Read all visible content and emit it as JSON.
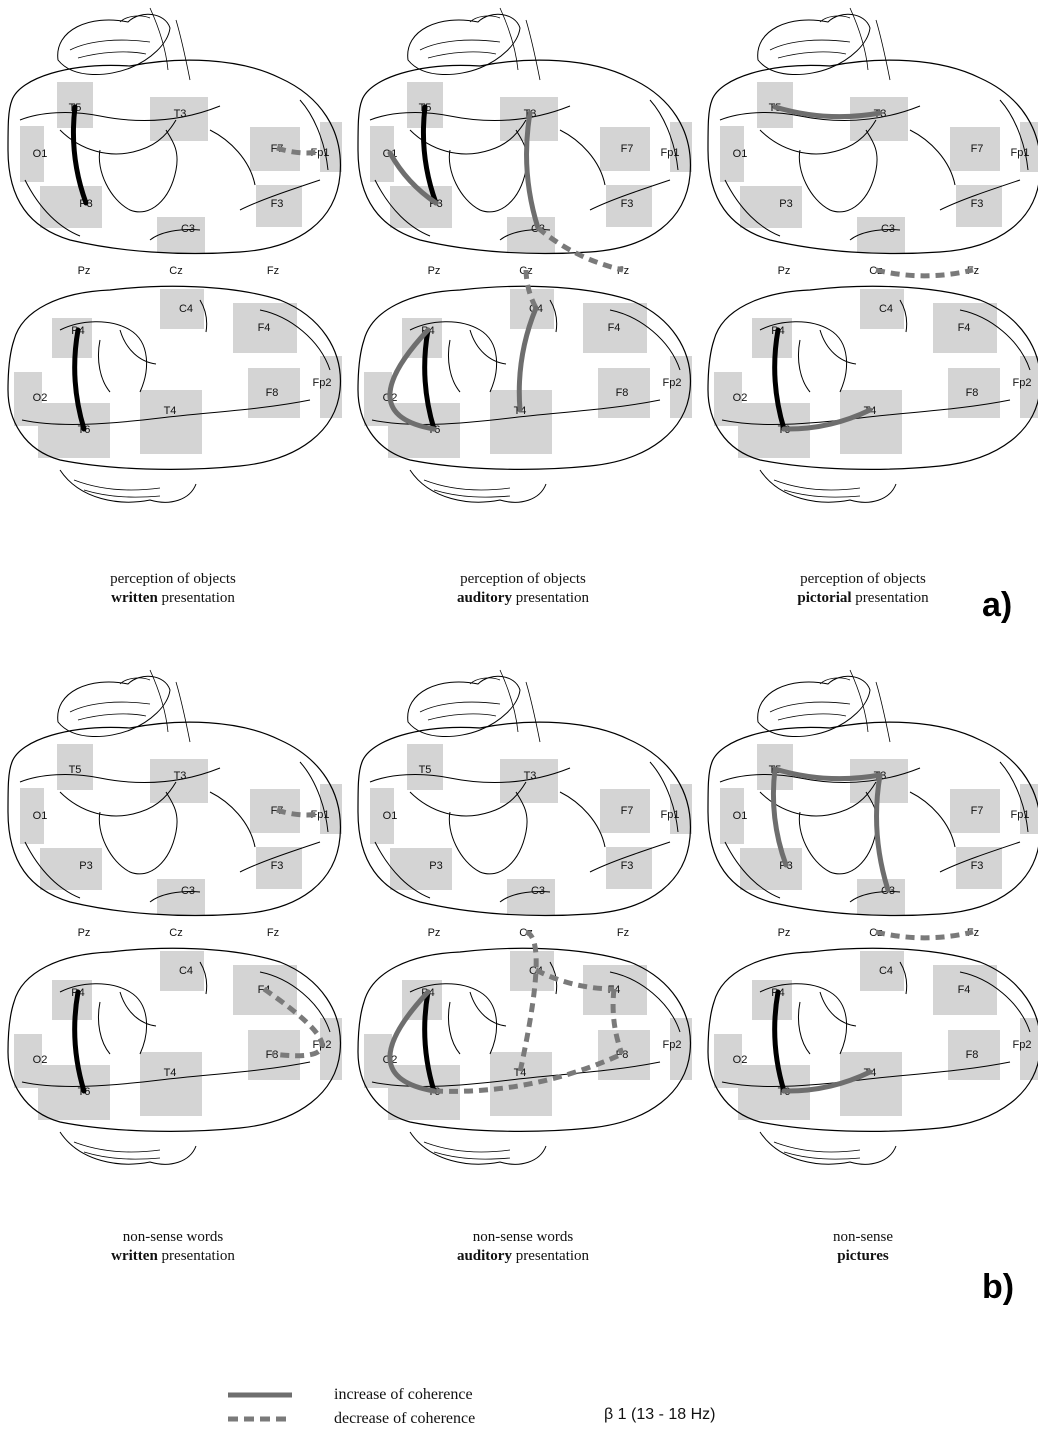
{
  "sections": [
    {
      "label": "a)",
      "panels": [
        {
          "caption_line1": "perception of objects",
          "caption_bold": "written",
          "caption_rest": " presentation",
          "connections": [
            {
              "from": "T5",
              "to": "P3",
              "type": "increase-left"
            },
            {
              "from": "F7",
              "to": "Fp1",
              "type": "decrease"
            },
            {
              "from": "P4",
              "to": "T6",
              "type": "increase-left"
            }
          ]
        },
        {
          "caption_line1": "perception of objects",
          "caption_bold": "auditory",
          "caption_rest": " presentation",
          "connections": [
            {
              "from": "T5",
              "to": "P3",
              "type": "increase-left"
            },
            {
              "from": "O1",
              "to": "P3",
              "type": "increase"
            },
            {
              "from": "T3",
              "to": "C3",
              "type": "increase"
            },
            {
              "from": "C3",
              "to": "Fz",
              "type": "decrease"
            },
            {
              "from": "Cz",
              "to": "C4",
              "type": "decrease"
            },
            {
              "from": "P4",
              "to": "T6",
              "type": "increase-left"
            },
            {
              "from": "P4",
              "to": "T6",
              "type": "increase",
              "via": "O2"
            },
            {
              "from": "C4",
              "to": "T4",
              "type": "increase"
            }
          ]
        },
        {
          "caption_line1": "perception of objects",
          "caption_bold": "pictorial",
          "caption_rest": " presentation",
          "connections": [
            {
              "from": "T5",
              "to": "T3",
              "type": "increase"
            },
            {
              "from": "Cz",
              "to": "Fz",
              "type": "decrease"
            },
            {
              "from": "P4",
              "to": "T6",
              "type": "increase-left"
            },
            {
              "from": "T6",
              "to": "T4",
              "type": "increase"
            }
          ]
        }
      ]
    },
    {
      "label": "b)",
      "panels": [
        {
          "caption_line1": "non-sense words",
          "caption_bold": "written",
          "caption_rest": " presentation",
          "connections": [
            {
              "from": "F7",
              "to": "Fp1",
              "type": "decrease"
            },
            {
              "from": "F4",
              "to": "F8",
              "type": "decrease",
              "via": "Fp2"
            },
            {
              "from": "P4",
              "to": "T6",
              "type": "increase-left"
            }
          ]
        },
        {
          "caption_line1": "non-sense words",
          "caption_bold": "auditory",
          "caption_rest": " presentation",
          "connections": [
            {
              "from": "Cz",
              "to": "T4",
              "type": "decrease",
              "via": "C4"
            },
            {
              "from": "C4",
              "to": "F4",
              "type": "decrease"
            },
            {
              "from": "F4",
              "to": "F8",
              "type": "decrease"
            },
            {
              "from": "T6",
              "to": "F8",
              "type": "decrease"
            },
            {
              "from": "P4",
              "to": "T6",
              "type": "increase-left"
            },
            {
              "from": "P4",
              "to": "T6",
              "type": "increase",
              "via": "O2"
            }
          ]
        },
        {
          "caption_line1": "non-sense",
          "caption_bold": "pictures",
          "caption_rest": "",
          "connections": [
            {
              "from": "T5",
              "to": "T3",
              "type": "increase"
            },
            {
              "from": "T5",
              "to": "P3",
              "type": "increase"
            },
            {
              "from": "T3",
              "to": "C3",
              "type": "increase"
            },
            {
              "from": "Cz",
              "to": "Fz",
              "type": "decrease"
            },
            {
              "from": "P4",
              "to": "T6",
              "type": "increase-left"
            },
            {
              "from": "T6",
              "to": "T4",
              "type": "increase"
            }
          ]
        }
      ]
    }
  ],
  "electrodes_upper": [
    "T5",
    "T3",
    "O1",
    "F7",
    "Fp1",
    "P3",
    "F3",
    "C3"
  ],
  "midline": [
    "Pz",
    "Cz",
    "Fz"
  ],
  "electrodes_lower": [
    "C4",
    "F4",
    "P4",
    "O2",
    "Fp2",
    "F8",
    "T6",
    "T4"
  ],
  "legend": {
    "increase": "increase of coherence",
    "decrease": "decrease of coherence",
    "band": "β 1 (13 - 18 Hz)"
  },
  "colors": {
    "increase": "#6e6e6e",
    "increase_left": "#000000",
    "decrease": "#7a7a7a",
    "box": "#d4d4d4",
    "outline": "#000000"
  }
}
